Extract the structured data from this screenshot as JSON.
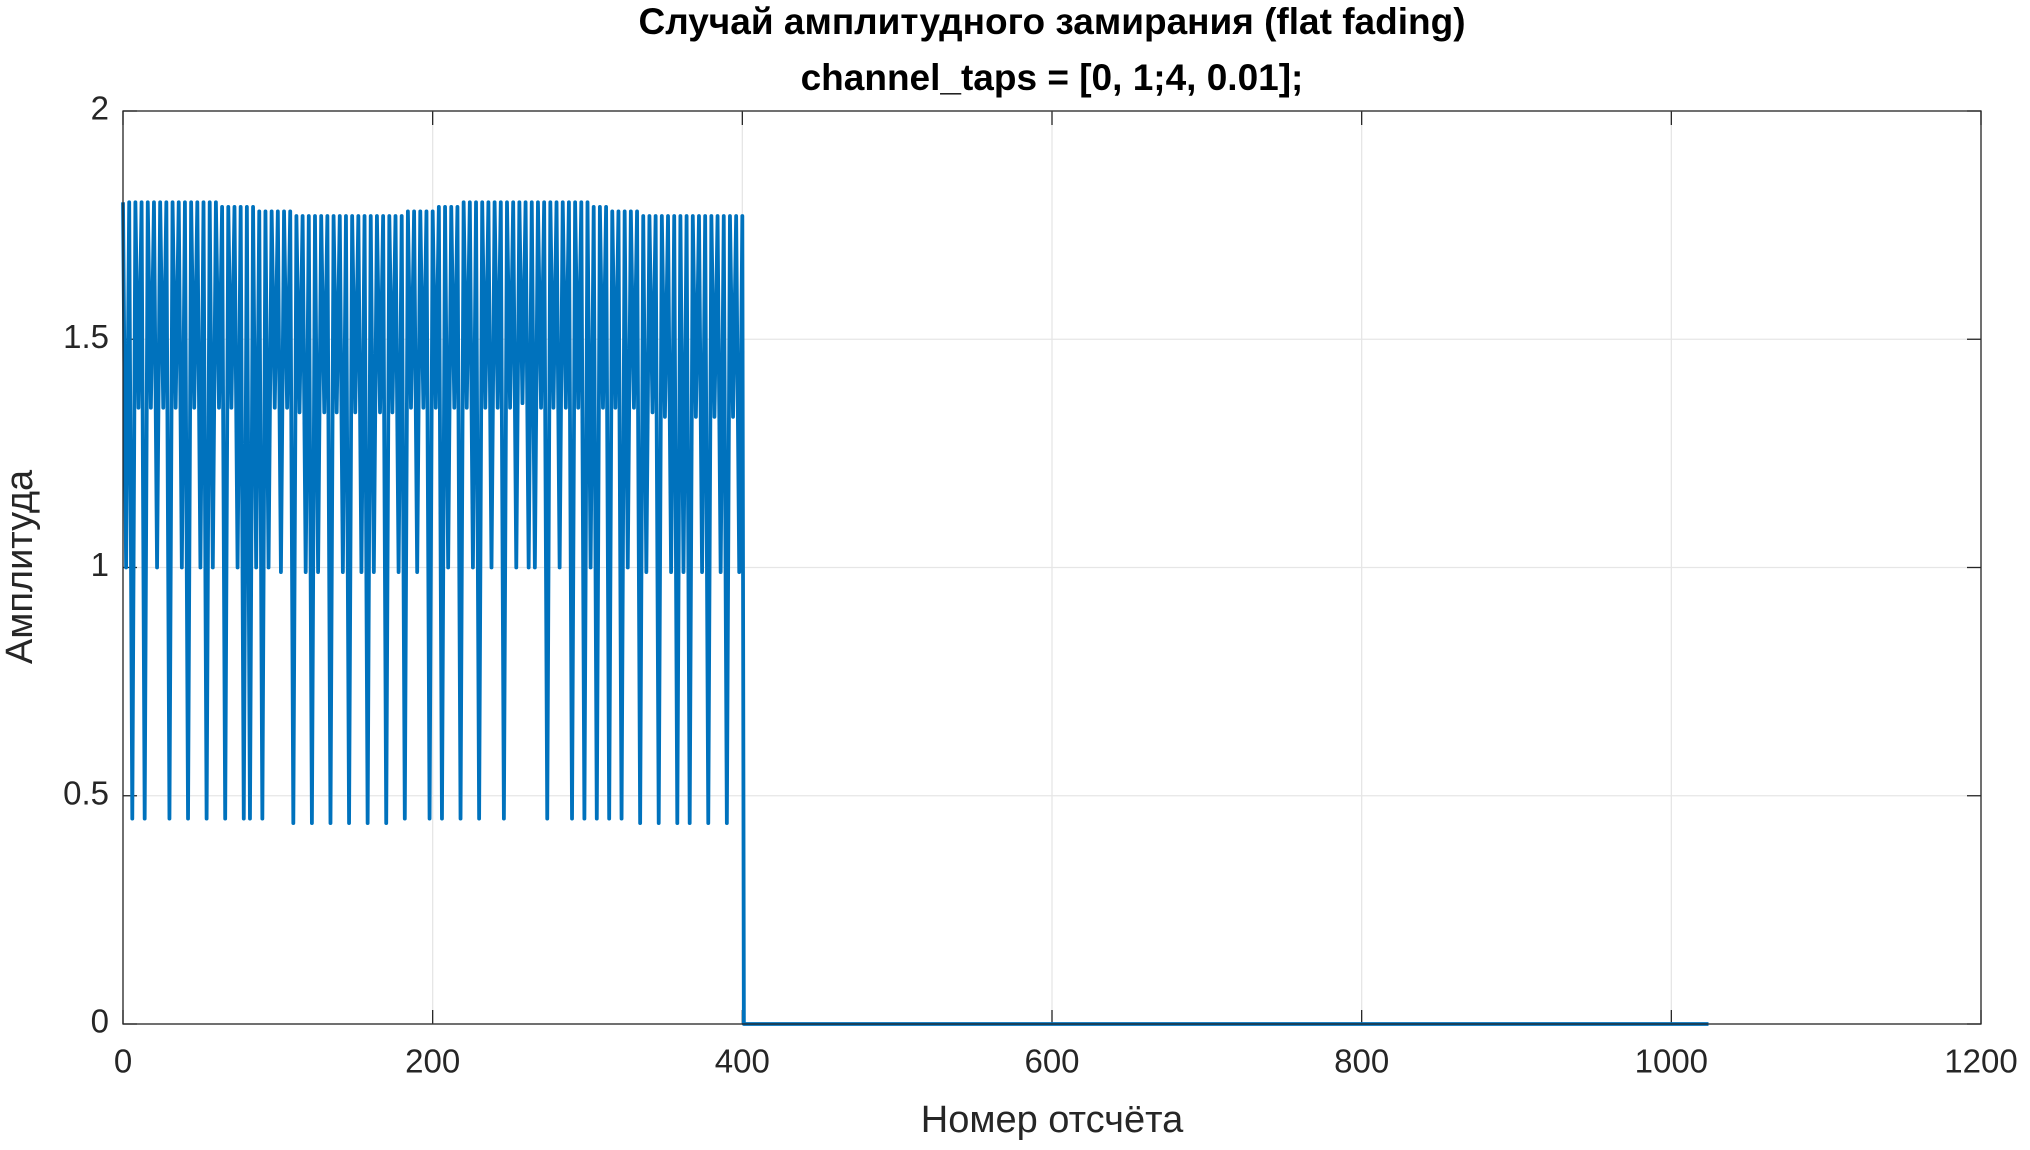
{
  "chart_data": {
    "type": "line",
    "title": [
      "Случай амплитудного замирания (flat fading)",
      "channel_taps = [0, 1;4, 0.01];"
    ],
    "x_label": "Номер отсчёта",
    "y_label": "Амплитуда",
    "color": "#0072BD",
    "grid": true,
    "xlim": [
      0,
      1200
    ],
    "xticks": [
      0,
      200,
      400,
      600,
      800,
      1000,
      1200
    ],
    "ylim": [
      0,
      2
    ],
    "yticks": [
      0,
      0.5,
      1,
      1.5,
      2
    ],
    "x": [
      0,
      2,
      4,
      6,
      8,
      10,
      12,
      14,
      16,
      18,
      20,
      22,
      24,
      26,
      28,
      30,
      32,
      34,
      36,
      38,
      40,
      42,
      44,
      46,
      48,
      50,
      52,
      54,
      56,
      58,
      60,
      62,
      64,
      66,
      68,
      70,
      72,
      74,
      76,
      78,
      80,
      82,
      84,
      86,
      88,
      90,
      92,
      94,
      96,
      98,
      100,
      102,
      104,
      106,
      108,
      110,
      112,
      114,
      116,
      118,
      120,
      122,
      124,
      126,
      128,
      130,
      132,
      134,
      136,
      138,
      140,
      142,
      144,
      146,
      148,
      150,
      152,
      154,
      156,
      158,
      160,
      162,
      164,
      166,
      168,
      170,
      172,
      174,
      176,
      178,
      180,
      182,
      184,
      186,
      188,
      190,
      192,
      194,
      196,
      198,
      200,
      202,
      204,
      206,
      208,
      210,
      212,
      214,
      216,
      218,
      220,
      222,
      224,
      226,
      228,
      230,
      232,
      234,
      236,
      238,
      240,
      242,
      244,
      246,
      248,
      250,
      252,
      254,
      256,
      258,
      260,
      262,
      264,
      266,
      268,
      270,
      272,
      274,
      276,
      278,
      280,
      282,
      284,
      286,
      288,
      290,
      292,
      294,
      296,
      298,
      300,
      302,
      304,
      306,
      308,
      310,
      312,
      314,
      316,
      318,
      320,
      322,
      324,
      326,
      328,
      330,
      332,
      334,
      336,
      338,
      340,
      342,
      344,
      346,
      348,
      350,
      352,
      354,
      356,
      358,
      360,
      362,
      364,
      366,
      368,
      370,
      372,
      374,
      376,
      378,
      380,
      382,
      384,
      386,
      388,
      390,
      392,
      394,
      396,
      398,
      400,
      401,
      1024
    ],
    "values": [
      1.8,
      1.0,
      1.8,
      0.45,
      1.8,
      1.35,
      1.8,
      0.45,
      1.8,
      1.35,
      1.8,
      1.0,
      1.8,
      1.35,
      1.8,
      0.45,
      1.8,
      1.35,
      1.8,
      1.0,
      1.8,
      0.45,
      1.8,
      1.35,
      1.8,
      1.0,
      1.8,
      0.45,
      1.8,
      1.0,
      1.8,
      1.35,
      1.79,
      0.45,
      1.79,
      1.35,
      1.79,
      1.0,
      1.79,
      0.45,
      1.79,
      0.45,
      1.79,
      1.0,
      1.78,
      0.45,
      1.78,
      1.0,
      1.78,
      1.35,
      1.78,
      0.99,
      1.78,
      1.35,
      1.78,
      0.44,
      1.77,
      1.34,
      1.77,
      0.99,
      1.77,
      0.44,
      1.77,
      0.99,
      1.77,
      1.34,
      1.77,
      0.44,
      1.77,
      1.34,
      1.77,
      0.99,
      1.77,
      0.44,
      1.77,
      1.34,
      1.77,
      0.99,
      1.77,
      0.44,
      1.77,
      0.99,
      1.77,
      1.34,
      1.77,
      0.44,
      1.77,
      1.34,
      1.77,
      0.99,
      1.77,
      0.45,
      1.78,
      1.35,
      1.78,
      0.99,
      1.78,
      1.35,
      1.78,
      0.45,
      1.78,
      1.35,
      1.79,
      0.45,
      1.79,
      1.0,
      1.79,
      1.35,
      1.79,
      0.45,
      1.8,
      1.35,
      1.8,
      1.0,
      1.8,
      0.45,
      1.8,
      1.35,
      1.8,
      1.0,
      1.8,
      1.35,
      1.8,
      0.45,
      1.8,
      1.35,
      1.8,
      1.0,
      1.8,
      1.36,
      1.8,
      1.0,
      1.8,
      1.0,
      1.8,
      1.35,
      1.8,
      0.45,
      1.8,
      1.35,
      1.8,
      1.0,
      1.8,
      1.35,
      1.8,
      0.45,
      1.8,
      1.35,
      1.8,
      0.45,
      1.8,
      1.0,
      1.79,
      0.45,
      1.79,
      1.35,
      1.79,
      0.45,
      1.78,
      1.35,
      1.78,
      0.45,
      1.78,
      1.0,
      1.78,
      1.35,
      1.78,
      0.44,
      1.77,
      0.99,
      1.77,
      1.34,
      1.77,
      0.44,
      1.77,
      1.33,
      1.77,
      0.99,
      1.77,
      0.44,
      1.77,
      0.99,
      1.77,
      0.44,
      1.77,
      1.33,
      1.77,
      0.99,
      1.77,
      0.44,
      1.77,
      1.33,
      1.77,
      0.99,
      1.77,
      0.44,
      1.77,
      1.33,
      1.77,
      0.99,
      1.77,
      0,
      0
    ]
  }
}
